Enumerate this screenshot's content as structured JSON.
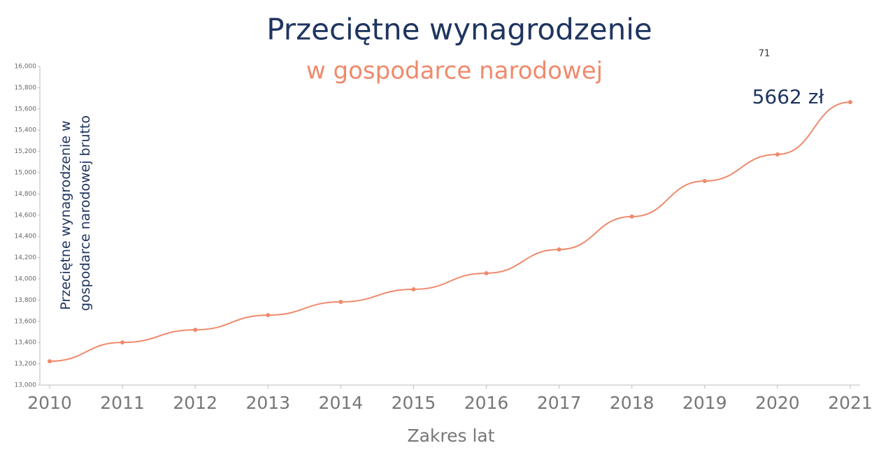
{
  "chart_data": {
    "type": "line",
    "title": "Przeciętne wynagrodzenie",
    "subtitle": "w gospodarce narodowej",
    "xlabel": "Zakres lat",
    "ylabel": [
      "Przeciętne wynagrodzenie w",
      "gospodarce narodowej brutto"
    ],
    "annotations": [
      "71",
      "5662 zł"
    ],
    "categories": [
      "2010",
      "2011",
      "2012",
      "2013",
      "2014",
      "2015",
      "2016",
      "2017",
      "2018",
      "2019",
      "2020",
      "2021"
    ],
    "values": [
      13224,
      13401,
      13520,
      13658,
      13783,
      13901,
      14053,
      14276,
      14586,
      14921,
      15171,
      15664
    ],
    "color": "#ef8a6c",
    "ylim": [
      13000,
      16000
    ],
    "yticks": [
      {
        "value": 13000,
        "label": "13,000"
      },
      {
        "value": 13200,
        "label": "13,200"
      },
      {
        "value": 13400,
        "label": "13,400"
      },
      {
        "value": 13600,
        "label": "13,600"
      },
      {
        "value": 13800,
        "label": "13,800"
      },
      {
        "value": 14000,
        "label": "14,000"
      },
      {
        "value": 14200,
        "label": "14,200"
      },
      {
        "value": 14400,
        "label": "14,400"
      },
      {
        "value": 14600,
        "label": "14,600"
      },
      {
        "value": 14800,
        "label": "14,800"
      },
      {
        "value": 15000,
        "label": "15,000"
      },
      {
        "value": 15200,
        "label": "15,200"
      },
      {
        "value": 15400,
        "label": "15,400"
      },
      {
        "value": 15600,
        "label": "15,600"
      },
      {
        "value": 15800,
        "label": "15,800"
      },
      {
        "value": 16000,
        "label": "16,000"
      }
    ],
    "grid": false
  }
}
